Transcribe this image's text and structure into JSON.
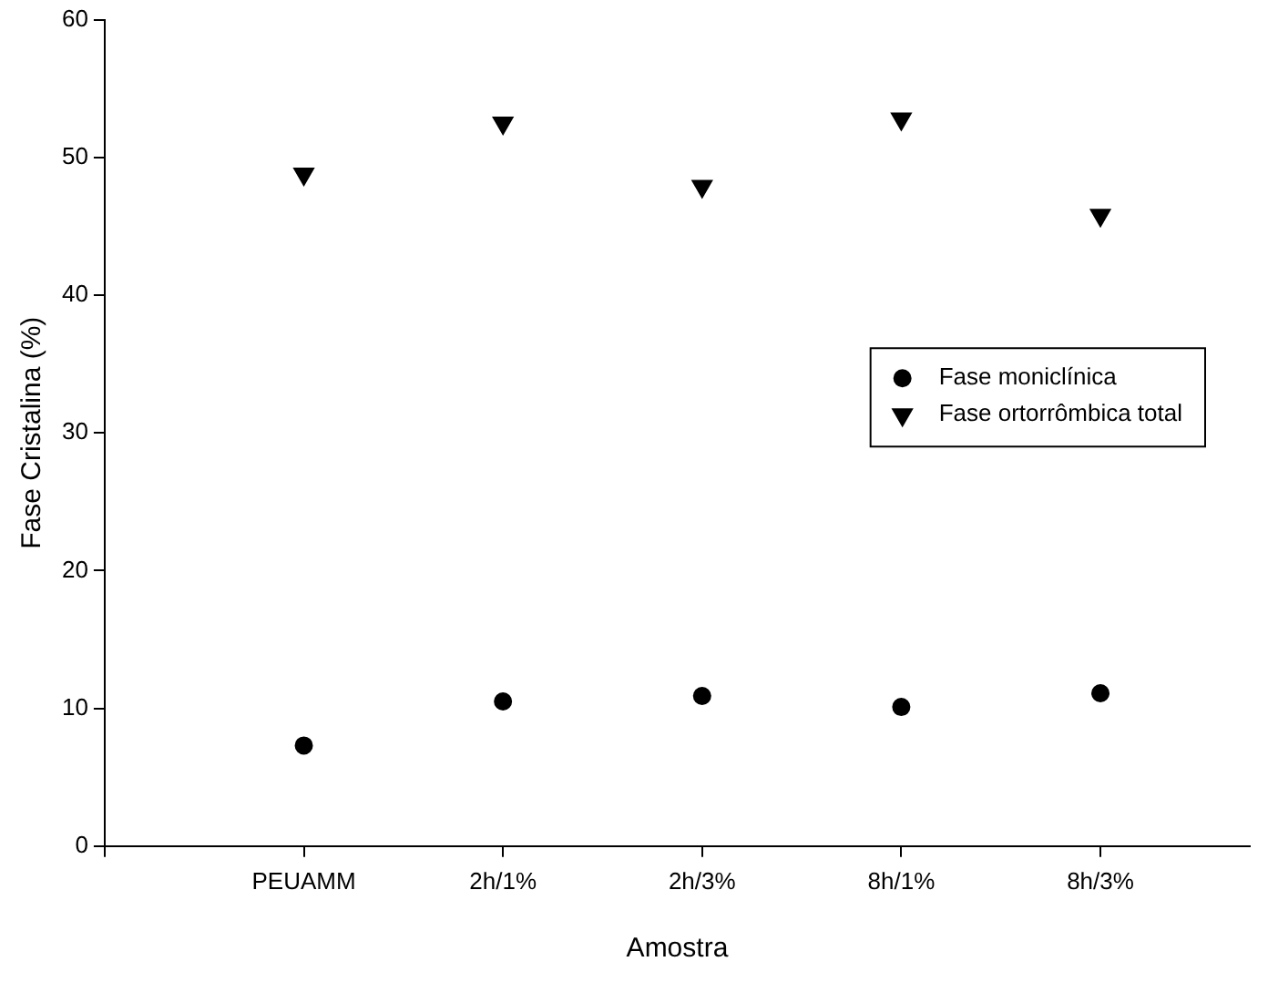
{
  "chart_data": {
    "type": "scatter",
    "xlabel": "Amostra",
    "ylabel": "Fase Cristalina (%)",
    "categories": [
      "PEUAMM",
      "2h/1%",
      "2h/3%",
      "8h/1%",
      "8h/3%"
    ],
    "series": [
      {
        "name": "Fase moniclínica",
        "color": "#000000",
        "marker": "circle",
        "values": [
          7.3,
          10.5,
          10.9,
          10.1,
          11.1
        ]
      },
      {
        "name": "Fase ortorrômbica total",
        "color": "#000000",
        "marker": "triangle",
        "values": [
          48.8,
          52.5,
          47.9,
          52.8,
          45.8
        ]
      }
    ],
    "ylim": [
      0,
      60
    ],
    "yticks": [
      0,
      10,
      20,
      30,
      40,
      50,
      60
    ],
    "grid": false,
    "legend": "right"
  }
}
